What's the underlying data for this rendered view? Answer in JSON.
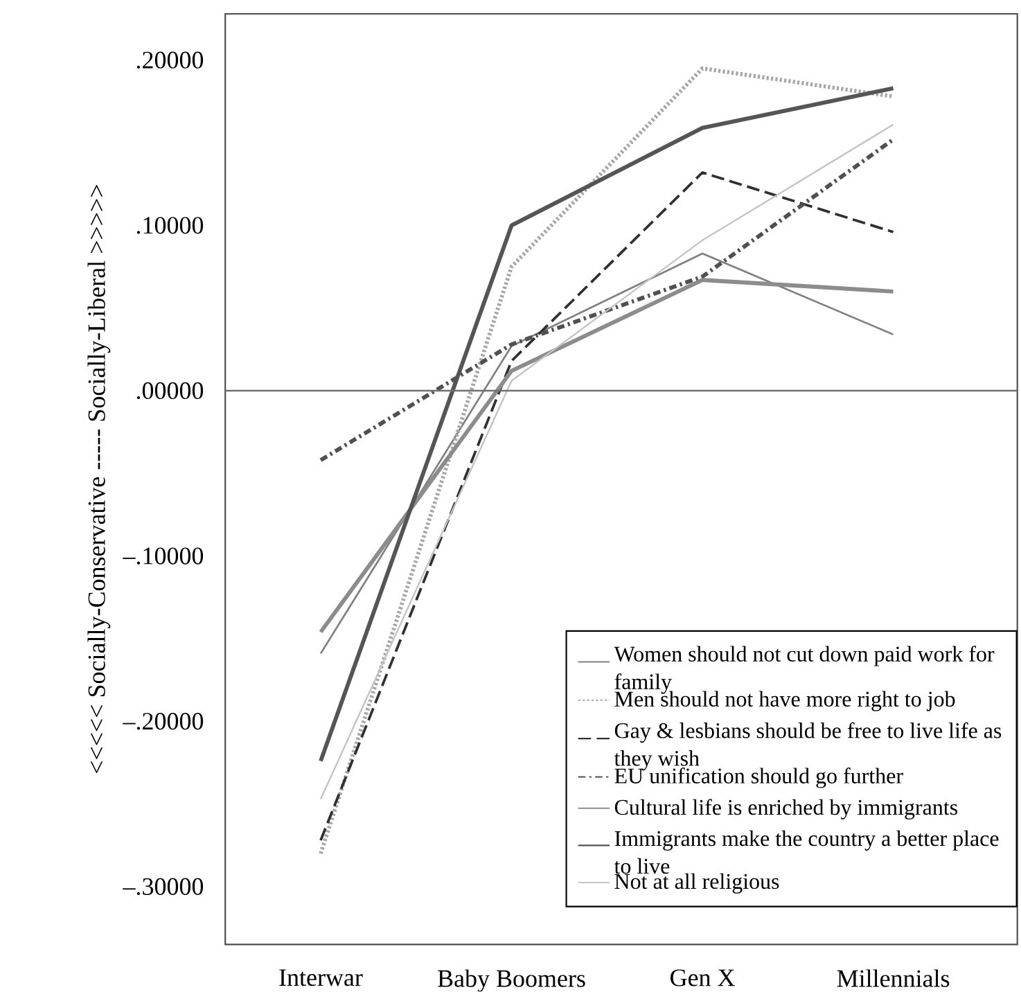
{
  "chart_data": {
    "type": "line",
    "ylabel": "<<<<< Socially-Conservative ----- Socially-Liberal >>>>>",
    "categories": [
      "Interwar",
      "Baby Boomers",
      "Gen X",
      "Millennials"
    ],
    "series": [
      {
        "name": "Women should not cut down paid work for family",
        "color": "#808080",
        "line_style": "solid",
        "values": [
          -0.159,
          0.027,
          0.083,
          0.034
        ]
      },
      {
        "name": "Men should not have more right to job",
        "color": "#a6a6a6",
        "line_style": "dotted",
        "values": [
          -0.28,
          0.075,
          0.195,
          0.178
        ]
      },
      {
        "name": "Gay & lesbians should be free to live life as they wish",
        "color": "#303030",
        "line_style": "dashed",
        "values": [
          -0.272,
          0.018,
          0.132,
          0.096
        ]
      },
      {
        "name": "EU unification should go further",
        "color": "#505050",
        "line_style": "dashdot",
        "values": [
          -0.042,
          0.028,
          0.069,
          0.152
        ]
      },
      {
        "name": "Cultural life is enriched by immigrants",
        "color": "#8c8c8c",
        "line_style": "solid",
        "values": [
          -0.146,
          0.012,
          0.067,
          0.06
        ]
      },
      {
        "name": "Immigrants make the country a better place to live",
        "color": "#555555",
        "line_style": "solid",
        "values": [
          -0.224,
          0.1,
          0.159,
          0.183
        ]
      },
      {
        "name": "Not at all religious",
        "color": "#c4c4c4",
        "line_style": "solid",
        "values": [
          -0.247,
          0.006,
          0.091,
          0.161
        ]
      }
    ],
    "ylim": [
      -0.335,
      0.228
    ],
    "yticks": [
      {
        "value": -0.3,
        "label": "–.30000"
      },
      {
        "value": -0.2,
        "label": "–.20000"
      },
      {
        "value": -0.1,
        "label": "–.10000"
      },
      {
        "value": 0,
        "label": ".00000"
      },
      {
        "value": 0.1,
        "label": ".10000"
      },
      {
        "value": 0.2,
        "label": ".20000"
      }
    ],
    "ref_lines": [
      {
        "axis": "y",
        "value": 0,
        "color": "#707070"
      }
    ],
    "legend": "bottom right",
    "grid": false
  }
}
